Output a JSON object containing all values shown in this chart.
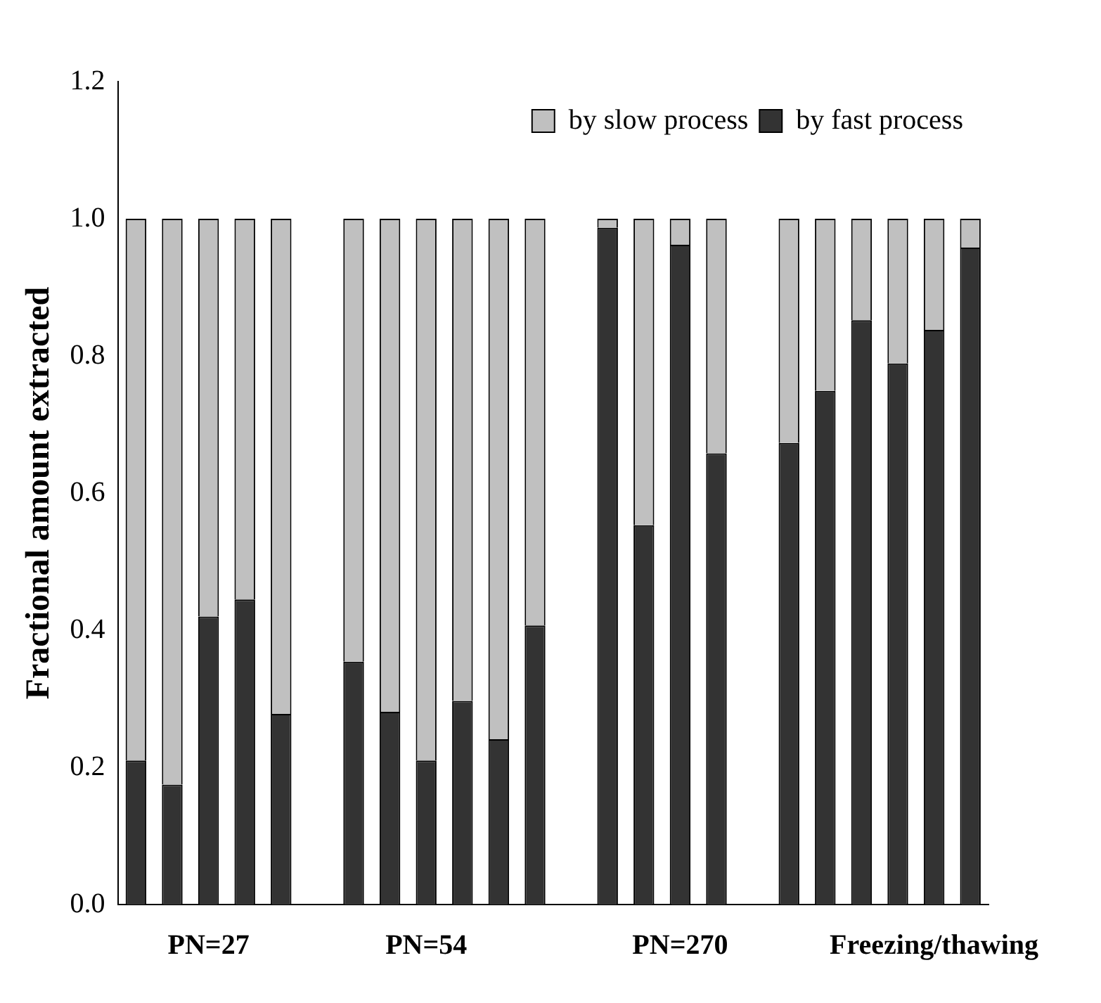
{
  "chart_data": {
    "type": "bar",
    "ylabel": "Fractional amount extracted",
    "categories": [
      null,
      null,
      "PN=27",
      null,
      null,
      null,
      null,
      null,
      "PN=54",
      null,
      null,
      null,
      null,
      null,
      null,
      "PN=270",
      null,
      null,
      null,
      null,
      null,
      null,
      "Freezing/thawing",
      null
    ],
    "stacked": true,
    "series": [
      {
        "name": "by fast process",
        "color": "#333333",
        "values": [
          0.21,
          0.175,
          0.42,
          0.445,
          0.278,
          null,
          0.354,
          0.281,
          0.21,
          0.297,
          0.241,
          0.407,
          null,
          0.987,
          0.553,
          0.962,
          0.658,
          null,
          0.673,
          0.749,
          0.852,
          0.789,
          0.838,
          0.958
        ]
      },
      {
        "name": "by slow process",
        "color": "#c0c0c0",
        "values": [
          0.79,
          0.825,
          0.58,
          0.555,
          0.722,
          null,
          0.646,
          0.719,
          0.79,
          0.703,
          0.759,
          0.593,
          null,
          0.013,
          0.447,
          0.038,
          0.342,
          null,
          0.327,
          0.251,
          0.148,
          0.211,
          0.162,
          0.042
        ]
      }
    ],
    "ylim": [
      0,
      1.2
    ],
    "yticks": [
      {
        "value": 0,
        "label": "0.0"
      },
      {
        "value": 0.2,
        "label": "0.2"
      },
      {
        "value": 0.4,
        "label": "0.4"
      },
      {
        "value": 0.6,
        "label": "0.6"
      },
      {
        "value": 0.8,
        "label": "0.8"
      },
      {
        "value": 1,
        "label": "1.0"
      },
      {
        "value": 1.2,
        "label": "1.2"
      }
    ],
    "grid": false,
    "legend": "top right"
  }
}
